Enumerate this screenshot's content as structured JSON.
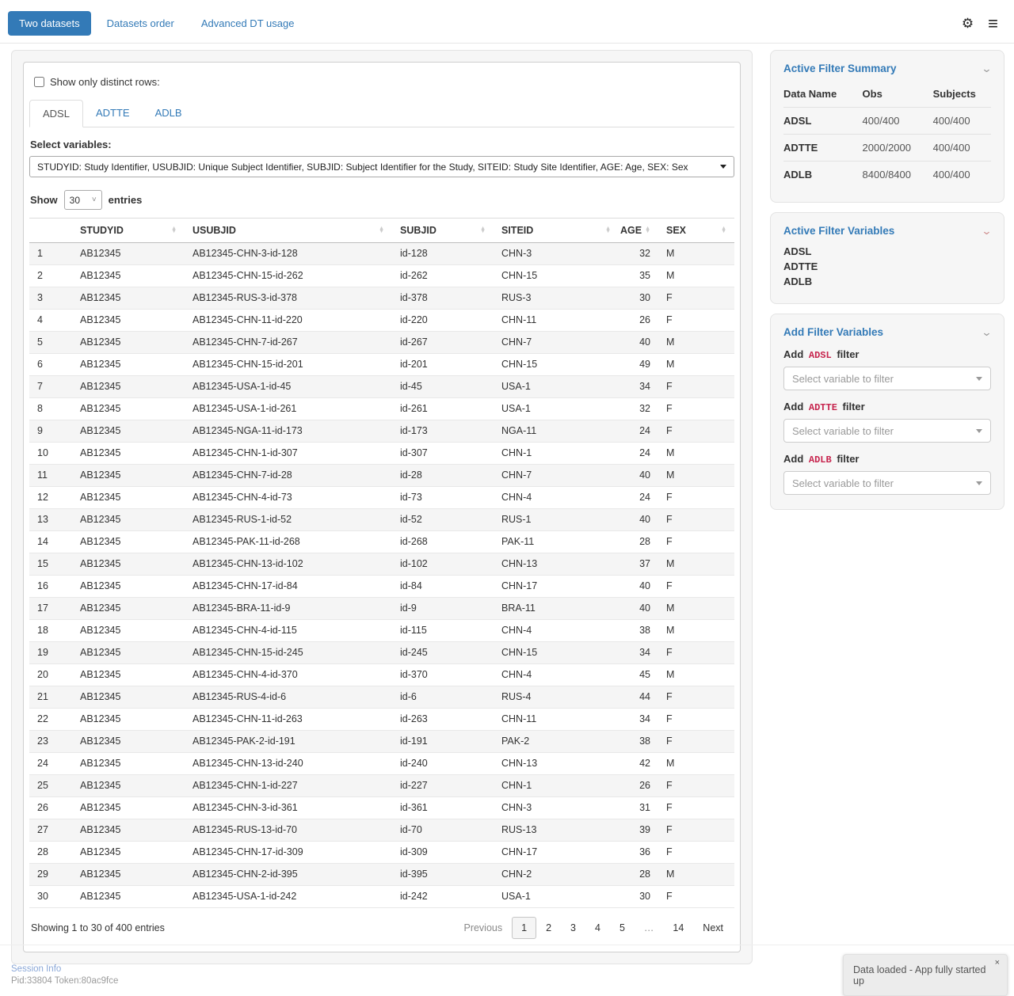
{
  "header": {
    "tabs": [
      {
        "label": "Two datasets",
        "active": true
      },
      {
        "label": "Datasets order",
        "active": false
      },
      {
        "label": "Advanced DT usage",
        "active": false
      }
    ],
    "gear_glyph": "⚙",
    "menu_glyph": "≡"
  },
  "main": {
    "distinct_checkbox_label": "Show only distinct rows:",
    "dataset_tabs": [
      {
        "label": "ADSL",
        "active": true
      },
      {
        "label": "ADTTE",
        "active": false
      },
      {
        "label": "ADLB",
        "active": false
      }
    ],
    "select_variables_label": "Select variables:",
    "select_variables_value": "STUDYID: Study Identifier, USUBJID: Unique Subject Identifier, SUBJID: Subject Identifier for the Study, SITEID: Study Site Identifier, AGE: Age, SEX: Sex",
    "length_control": {
      "prefix": "Show",
      "page_size": "30",
      "suffix": "entries"
    },
    "table": {
      "columns": [
        "",
        "STUDYID",
        "USUBJID",
        "SUBJID",
        "SITEID",
        "AGE",
        "SEX"
      ],
      "rows": [
        [
          1,
          "AB12345",
          "AB12345-CHN-3-id-128",
          "id-128",
          "CHN-3",
          32,
          "M"
        ],
        [
          2,
          "AB12345",
          "AB12345-CHN-15-id-262",
          "id-262",
          "CHN-15",
          35,
          "M"
        ],
        [
          3,
          "AB12345",
          "AB12345-RUS-3-id-378",
          "id-378",
          "RUS-3",
          30,
          "F"
        ],
        [
          4,
          "AB12345",
          "AB12345-CHN-11-id-220",
          "id-220",
          "CHN-11",
          26,
          "F"
        ],
        [
          5,
          "AB12345",
          "AB12345-CHN-7-id-267",
          "id-267",
          "CHN-7",
          40,
          "M"
        ],
        [
          6,
          "AB12345",
          "AB12345-CHN-15-id-201",
          "id-201",
          "CHN-15",
          49,
          "M"
        ],
        [
          7,
          "AB12345",
          "AB12345-USA-1-id-45",
          "id-45",
          "USA-1",
          34,
          "F"
        ],
        [
          8,
          "AB12345",
          "AB12345-USA-1-id-261",
          "id-261",
          "USA-1",
          32,
          "F"
        ],
        [
          9,
          "AB12345",
          "AB12345-NGA-11-id-173",
          "id-173",
          "NGA-11",
          24,
          "F"
        ],
        [
          10,
          "AB12345",
          "AB12345-CHN-1-id-307",
          "id-307",
          "CHN-1",
          24,
          "M"
        ],
        [
          11,
          "AB12345",
          "AB12345-CHN-7-id-28",
          "id-28",
          "CHN-7",
          40,
          "M"
        ],
        [
          12,
          "AB12345",
          "AB12345-CHN-4-id-73",
          "id-73",
          "CHN-4",
          24,
          "F"
        ],
        [
          13,
          "AB12345",
          "AB12345-RUS-1-id-52",
          "id-52",
          "RUS-1",
          40,
          "F"
        ],
        [
          14,
          "AB12345",
          "AB12345-PAK-11-id-268",
          "id-268",
          "PAK-11",
          28,
          "F"
        ],
        [
          15,
          "AB12345",
          "AB12345-CHN-13-id-102",
          "id-102",
          "CHN-13",
          37,
          "M"
        ],
        [
          16,
          "AB12345",
          "AB12345-CHN-17-id-84",
          "id-84",
          "CHN-17",
          40,
          "F"
        ],
        [
          17,
          "AB12345",
          "AB12345-BRA-11-id-9",
          "id-9",
          "BRA-11",
          40,
          "M"
        ],
        [
          18,
          "AB12345",
          "AB12345-CHN-4-id-115",
          "id-115",
          "CHN-4",
          38,
          "M"
        ],
        [
          19,
          "AB12345",
          "AB12345-CHN-15-id-245",
          "id-245",
          "CHN-15",
          34,
          "F"
        ],
        [
          20,
          "AB12345",
          "AB12345-CHN-4-id-370",
          "id-370",
          "CHN-4",
          45,
          "M"
        ],
        [
          21,
          "AB12345",
          "AB12345-RUS-4-id-6",
          "id-6",
          "RUS-4",
          44,
          "F"
        ],
        [
          22,
          "AB12345",
          "AB12345-CHN-11-id-263",
          "id-263",
          "CHN-11",
          34,
          "F"
        ],
        [
          23,
          "AB12345",
          "AB12345-PAK-2-id-191",
          "id-191",
          "PAK-2",
          38,
          "F"
        ],
        [
          24,
          "AB12345",
          "AB12345-CHN-13-id-240",
          "id-240",
          "CHN-13",
          42,
          "M"
        ],
        [
          25,
          "AB12345",
          "AB12345-CHN-1-id-227",
          "id-227",
          "CHN-1",
          26,
          "F"
        ],
        [
          26,
          "AB12345",
          "AB12345-CHN-3-id-361",
          "id-361",
          "CHN-3",
          31,
          "F"
        ],
        [
          27,
          "AB12345",
          "AB12345-RUS-13-id-70",
          "id-70",
          "RUS-13",
          39,
          "F"
        ],
        [
          28,
          "AB12345",
          "AB12345-CHN-17-id-309",
          "id-309",
          "CHN-17",
          36,
          "F"
        ],
        [
          29,
          "AB12345",
          "AB12345-CHN-2-id-395",
          "id-395",
          "CHN-2",
          28,
          "M"
        ],
        [
          30,
          "AB12345",
          "AB12345-USA-1-id-242",
          "id-242",
          "USA-1",
          30,
          "F"
        ]
      ]
    },
    "info": "Showing 1 to 30 of 400 entries",
    "pagination": {
      "items": [
        "Previous",
        "1",
        "2",
        "3",
        "4",
        "5",
        "…",
        "14",
        "Next"
      ],
      "active": "1",
      "disabled": [
        "Previous"
      ]
    }
  },
  "sidebar": {
    "summary": {
      "title": "Active Filter Summary",
      "columns": [
        "Data Name",
        "Obs",
        "Subjects"
      ],
      "rows": [
        [
          "ADSL",
          "400/400",
          "400/400"
        ],
        [
          "ADTTE",
          "2000/2000",
          "400/400"
        ],
        [
          "ADLB",
          "8400/8400",
          "400/400"
        ]
      ]
    },
    "variables": {
      "title": "Active Filter Variables",
      "items": [
        "ADSL",
        "ADTTE",
        "ADLB"
      ]
    },
    "add_filters": {
      "title": "Add Filter Variables",
      "groups": [
        {
          "prefix": "Add",
          "dataset": "ADSL",
          "suffix": "filter",
          "placeholder": "Select variable to filter"
        },
        {
          "prefix": "Add",
          "dataset": "ADTTE",
          "suffix": "filter",
          "placeholder": "Select variable to filter"
        },
        {
          "prefix": "Add",
          "dataset": "ADLB",
          "suffix": "filter",
          "placeholder": "Select variable to filter"
        }
      ]
    }
  },
  "footer": {
    "session_info": "Session Info",
    "process": "Pid:33804 Token:80ac9fce"
  },
  "toast": {
    "message": "Data loaded - App fully started up",
    "close": "×"
  },
  "colors": {
    "accent": "#337ab7",
    "code_red": "#c7254e"
  }
}
